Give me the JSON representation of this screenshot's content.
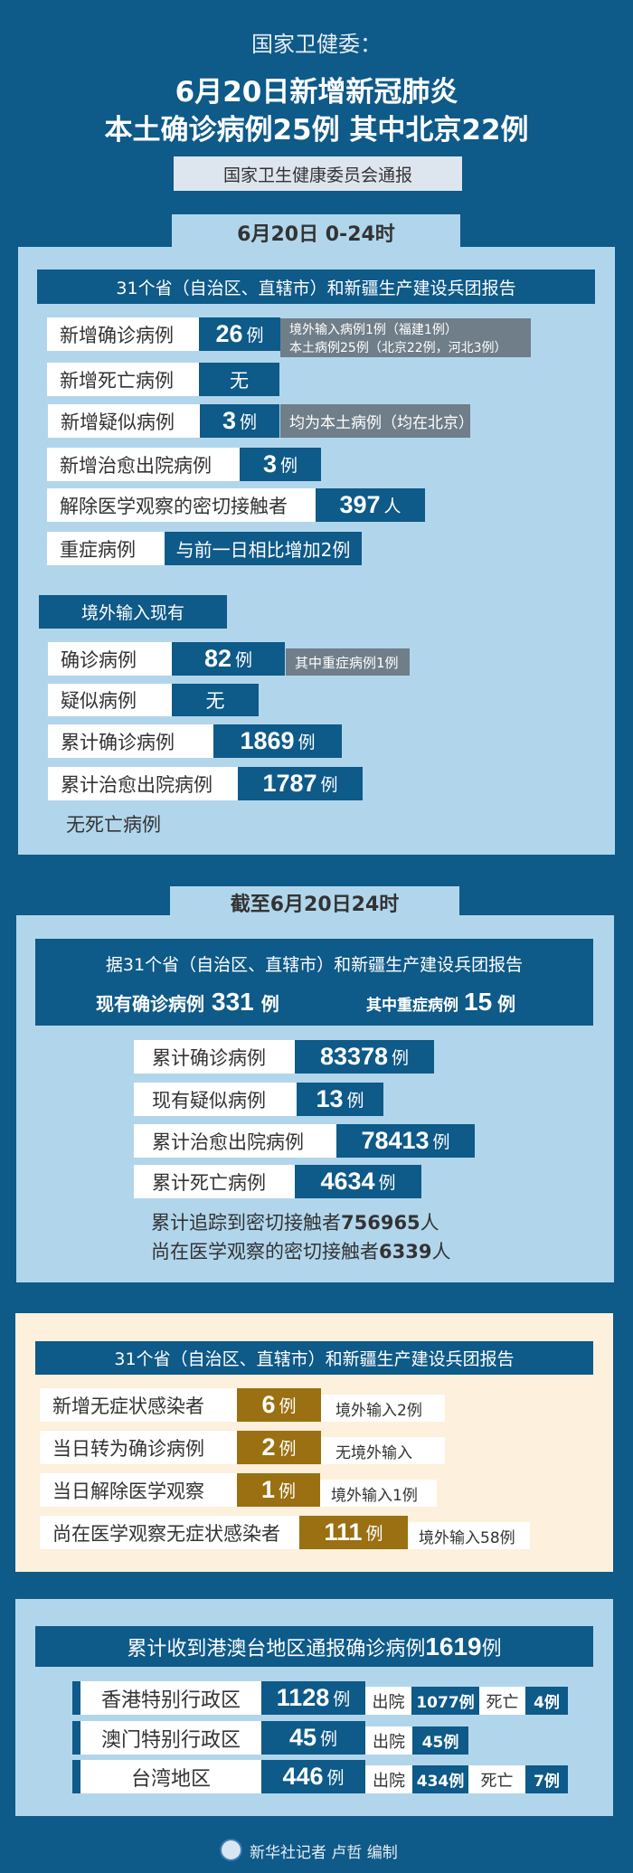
{
  "header": {
    "subtitle": "国家卫健委：",
    "title_line1": "6月20日新增新冠肺炎",
    "title_line2": "本土确诊病例25例 其中北京22例",
    "source": "国家卫生健康委员会通报"
  },
  "s1": {
    "tab": "6月20日 0-24时",
    "bar": "31个省（自治区、直辖市）和新疆生产建设兵团报告",
    "rows": [
      {
        "label": "新增确诊病例",
        "value": "26",
        "unit": "例",
        "note1": "境外输入病例1例（福建1例）",
        "note2": "本土病例25例（北京22例，河北3例）"
      },
      {
        "label": "新增死亡病例",
        "value": "无"
      },
      {
        "label": "新增疑似病例",
        "value": "3",
        "unit": "例",
        "note1": "均为本土病例（均在北京）"
      },
      {
        "label": "新增治愈出院病例",
        "value": "3",
        "unit": "例"
      },
      {
        "label": "解除医学观察的密切接触者",
        "value": "397",
        "unit": "人"
      },
      {
        "label": "重症病例",
        "value": "与前一日相比增加2例"
      }
    ],
    "imported_tab": "境外输入现有",
    "imported": [
      {
        "label": "确诊病例",
        "value": "82",
        "unit": "例",
        "note1": "其中重症病例1例"
      },
      {
        "label": "疑似病例",
        "value": "无"
      },
      {
        "label": "累计确诊病例",
        "value": "1869",
        "unit": "例"
      },
      {
        "label": "累计治愈出院病例",
        "value": "1787",
        "unit": "例"
      }
    ],
    "no_death": "无死亡病例"
  },
  "s2": {
    "tab": "截至6月20日24时",
    "bar_line1": "据31个省（自治区、直辖市）和新疆生产建设兵团报告",
    "current_label": "现有确诊病例",
    "current_value": "331",
    "current_unit": "例",
    "severe_label": "其中重症病例",
    "severe_value": "15",
    "severe_unit": "例",
    "rows": [
      {
        "label": "累计确诊病例",
        "value": "83378",
        "unit": "例"
      },
      {
        "label": "现有疑似病例",
        "value": "13",
        "unit": "例"
      },
      {
        "label": "累计治愈出院病例",
        "value": "78413",
        "unit": "例"
      },
      {
        "label": "累计死亡病例",
        "value": "4634",
        "unit": "例"
      }
    ],
    "traced_label": "累计追踪到密切接触者",
    "traced_value": "756965",
    "traced_unit": "人",
    "observing_label": "尚在医学观察的密切接触者",
    "observing_value": "6339",
    "observing_unit": "人"
  },
  "s3": {
    "bar": "31个省（自治区、直辖市）和新疆生产建设兵团报告",
    "rows": [
      {
        "label": "新增无症状感染者",
        "value": "6",
        "unit": "例",
        "note": "境外输入2例"
      },
      {
        "label": "当日转为确诊病例",
        "value": "2",
        "unit": "例",
        "note": "无境外输入"
      },
      {
        "label": "当日解除医学观察",
        "value": "1",
        "unit": "例",
        "note": "境外输入1例"
      },
      {
        "label": "尚在医学观察无症状感染者",
        "value": "111",
        "unit": "例",
        "note": "境外输入58例"
      }
    ]
  },
  "s4": {
    "bar_label": "累计收到港澳台地区通报确诊病例",
    "bar_value": "1619",
    "bar_unit": "例",
    "discharged": "出院",
    "death": "死亡",
    "rows": [
      {
        "label": "香港特别行政区",
        "value": "1128",
        "unit": "例",
        "discharged": "1077例",
        "death": "4例"
      },
      {
        "label": "澳门特别行政区",
        "value": "45",
        "unit": "例",
        "discharged": "45例"
      },
      {
        "label": "台湾地区",
        "value": "446",
        "unit": "例",
        "discharged": "434例",
        "death": "7例"
      }
    ]
  },
  "footer": {
    "credit": "新华社记者 卢哲 编制",
    "logo": "xinhua-logo"
  },
  "colors": {
    "background": "#0e5a89",
    "panel": "#b1d6ec",
    "note": "#6f7e89",
    "gold": "#9a7012",
    "cream": "#fdf0dc"
  }
}
